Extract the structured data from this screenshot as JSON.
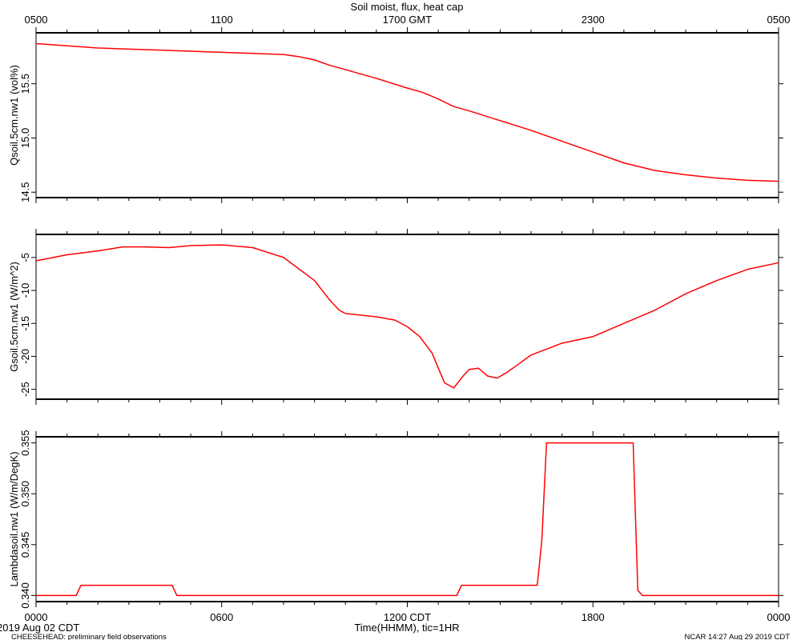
{
  "title": "Soil moist, flux, heat cap",
  "top_axis": {
    "ticks": [
      {
        "label": "0500",
        "hour": 0
      },
      {
        "label": "1100",
        "hour": 6
      },
      {
        "label": "1700 GMT",
        "hour": 12
      },
      {
        "label": "2300",
        "hour": 18
      },
      {
        "label": "0500",
        "hour": 24
      }
    ]
  },
  "bottom_axis": {
    "label": "Time(HHMM), tic=1HR",
    "ticks": [
      {
        "label": "0000",
        "hour": 0
      },
      {
        "label": "0600",
        "hour": 6
      },
      {
        "label": "1200 CDT",
        "hour": 12
      },
      {
        "label": "1800",
        "hour": 18
      },
      {
        "label": "0000",
        "hour": 24
      }
    ]
  },
  "footer": {
    "date": "2019 Aug 02 CDT",
    "left": "CHEESEHEAD: preliminary field observations",
    "right": "NCAR 14:27 Aug 29 2019 CDT"
  },
  "colors": {
    "series": "#ff0000",
    "axes": "#000000"
  },
  "chart_data": [
    {
      "type": "line",
      "ylabel": "Qsoil.5cm.nw1 (vol%)",
      "ylim": [
        14.45,
        15.97
      ],
      "yticks": [
        14.5,
        15.0,
        15.5
      ],
      "ytick_labels": [
        "14.5",
        "15.0",
        "15.5"
      ],
      "series": [
        {
          "x": [
            0,
            0.5,
            1,
            1.5,
            2,
            3,
            4,
            5,
            6,
            7,
            8,
            8.5,
            9,
            9.5,
            10,
            11,
            12,
            12.5,
            13,
            13.5,
            14,
            15,
            16,
            17,
            18,
            19,
            20,
            21,
            22,
            23,
            24
          ],
          "values": [
            15.87,
            15.86,
            15.85,
            15.84,
            15.83,
            15.82,
            15.81,
            15.8,
            15.79,
            15.78,
            15.77,
            15.75,
            15.72,
            15.67,
            15.63,
            15.55,
            15.46,
            15.42,
            15.36,
            15.29,
            15.25,
            15.16,
            15.07,
            14.97,
            14.87,
            14.77,
            14.7,
            14.66,
            14.63,
            14.61,
            14.6
          ]
        }
      ]
    },
    {
      "type": "line",
      "ylabel": "Gsoil.5cm.nw1 (W/m^2)",
      "ylim": [
        -26.5,
        -1.5
      ],
      "yticks": [
        -25,
        -20,
        -15,
        -10,
        -5
      ],
      "ytick_labels": [
        "-25",
        "-20",
        "-15",
        "-10",
        "-5"
      ],
      "series": [
        {
          "x": [
            0,
            1,
            2,
            2.8,
            3.5,
            4.3,
            5,
            6,
            7,
            8,
            9,
            9.5,
            9.8,
            10,
            11,
            11.6,
            12,
            12.4,
            12.8,
            13.2,
            13.5,
            13.8,
            14,
            14.3,
            14.6,
            14.9,
            15.2,
            15.5,
            16,
            17,
            18,
            19,
            20,
            21,
            22,
            23,
            24
          ],
          "values": [
            -5.5,
            -4.6,
            -4.0,
            -3.4,
            -3.4,
            -3.5,
            -3.2,
            -3.1,
            -3.5,
            -5.0,
            -8.5,
            -11.5,
            -13.0,
            -13.5,
            -14.0,
            -14.5,
            -15.5,
            -17.0,
            -19.5,
            -24.0,
            -24.8,
            -23.0,
            -22.0,
            -21.8,
            -23.0,
            -23.3,
            -22.5,
            -21.5,
            -19.8,
            -18.0,
            -17.0,
            -15.0,
            -13.0,
            -10.5,
            -8.5,
            -6.8,
            -5.8
          ]
        }
      ]
    },
    {
      "type": "line",
      "ylabel": "Lambdasoil.nw1 (W/m/DegK)",
      "ylim": [
        0.3394,
        0.3556
      ],
      "yticks": [
        0.34,
        0.345,
        0.35,
        0.355
      ],
      "ytick_labels": [
        "0.340",
        "0.345",
        "0.350",
        "0.355"
      ],
      "series": [
        {
          "x": [
            0,
            1.3,
            1.45,
            4.4,
            4.55,
            13.6,
            13.75,
            16.2,
            16.35,
            16.5,
            19.3,
            19.45,
            19.6,
            24
          ],
          "values": [
            0.34,
            0.34,
            0.341,
            0.341,
            0.34,
            0.34,
            0.341,
            0.341,
            0.3455,
            0.355,
            0.355,
            0.3405,
            0.34,
            0.34
          ]
        }
      ]
    }
  ]
}
